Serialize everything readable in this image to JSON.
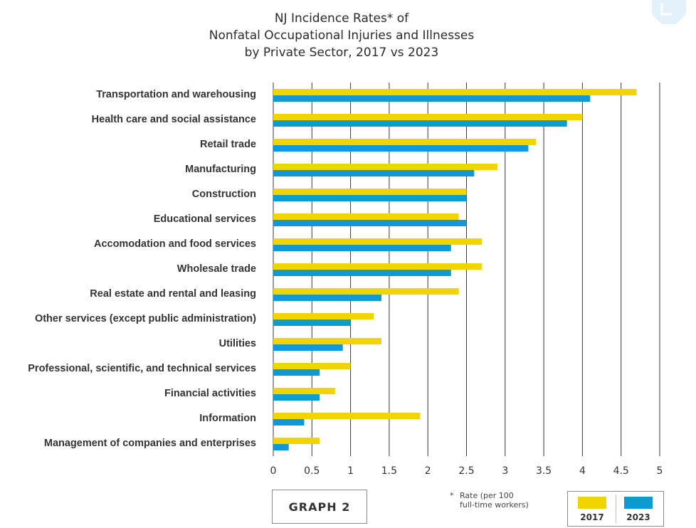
{
  "title_lines": [
    "NJ Incidence Rates* of",
    "Nonfatal Occupational Injuries and Illnesses",
    "by Private Sector, 2017 vs 2023"
  ],
  "graph_label": "GRAPH 2",
  "footnote": {
    "star": "*",
    "line1": "Rate (per 100",
    "line2": "full-time workers)"
  },
  "colors": {
    "series_2017": "#f2d400",
    "series_2023": "#0f9ad6",
    "grid": "#3a3a3a",
    "deco": "#e3f1fb"
  },
  "chart_data": {
    "type": "bar",
    "orientation": "horizontal",
    "categories": [
      "Transportation and warehousing",
      "Health care and social assistance",
      "Retail trade",
      "Manufacturing",
      "Construction",
      "Educational services",
      "Accomodation and food services",
      "Wholesale trade",
      "Real estate and rental and leasing",
      "Other services (except public administration)",
      "Utilities",
      "Professional, scientific, and technical services",
      "Financial activities",
      "Information",
      "Management of companies and enterprises"
    ],
    "series": [
      {
        "name": "2017",
        "values": [
          4.7,
          4.0,
          3.4,
          2.9,
          2.5,
          2.4,
          2.7,
          2.7,
          2.4,
          1.3,
          1.4,
          1.0,
          0.8,
          1.9,
          0.6
        ]
      },
      {
        "name": "2023",
        "values": [
          4.1,
          3.8,
          3.3,
          2.6,
          2.5,
          2.5,
          2.3,
          2.3,
          1.4,
          1.0,
          0.9,
          0.6,
          0.6,
          0.4,
          0.2
        ]
      }
    ],
    "x_ticks": [
      "0",
      "0.5",
      "1",
      "1.5",
      "2",
      "2.5",
      "3",
      "3.5",
      "4",
      "4.5",
      "5"
    ],
    "xlim": [
      0,
      5
    ],
    "grid": true,
    "legend_position": "bottom-right"
  }
}
